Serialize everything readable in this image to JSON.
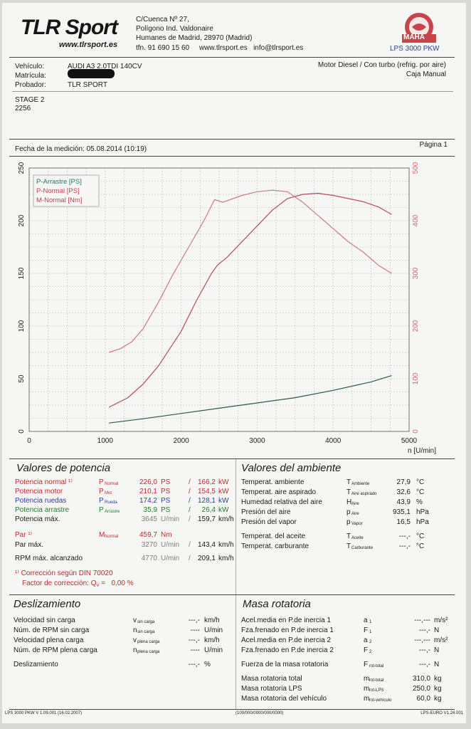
{
  "company": {
    "logo_text": "TLR Sport",
    "logo_url": "www.tlrsport.es",
    "address_line1": "C/Cuenca  Nº 27,",
    "address_line2": "Polígono Ind. Valdonaire",
    "address_line3": "Humanes de Madrid, 28970 (Madrid)",
    "contact_line": "tfn. 91 690 15 60     www.tlrsport.es   info@tlrsport.es",
    "brand_logo_text": "MAHA",
    "brand_model": "LPS 3000 PKW"
  },
  "vehicle": {
    "vehiculo_label": "Vehículo:",
    "vehiculo_value": "AUDI A3 2.0TDI 140CV",
    "matricula_label": "Matrícula:",
    "probador_label": "Probador:",
    "probador_value": "TLR SPORT",
    "engine_type": "Motor Diesel / Con turbo (refrig. por aire)",
    "gearbox": "Caja Manual",
    "stage": "STAGE 2",
    "code": "2256"
  },
  "measurement": {
    "date_label": "Fecha de la medición: 05.08.2014 (10:19)",
    "page_label": "Página 1"
  },
  "chart_data": {
    "type": "line",
    "xlabel": "n [U/min]",
    "xlim": [
      0,
      5000
    ],
    "x_ticks": [
      "0",
      "1000",
      "2000",
      "3000",
      "4000",
      "5000"
    ],
    "ylim_left": [
      0,
      250
    ],
    "y_ticks_left": [
      "0",
      "50",
      "100",
      "150",
      "200",
      "250"
    ],
    "ylim_right": [
      0,
      500
    ],
    "y_ticks_right": [
      "0",
      "100",
      "200",
      "300",
      "400",
      "500"
    ],
    "grid": true,
    "legend_position": "top-left",
    "series": [
      {
        "name": "P-Arrastre [PS]",
        "color": "#2c5a4a",
        "axis": "left",
        "x": [
          1050,
          1500,
          2000,
          2500,
          3000,
          3500,
          4000,
          4500,
          4770
        ],
        "y": [
          8,
          12,
          17,
          22,
          27,
          32,
          39,
          47,
          53
        ]
      },
      {
        "name": "P-Normal [PS]",
        "color": "#b84a57",
        "axis": "left",
        "x": [
          1050,
          1300,
          1500,
          1700,
          2000,
          2200,
          2400,
          2480,
          2600,
          3000,
          3200,
          3400,
          3600,
          3800,
          4000,
          4200,
          4400,
          4600,
          4770
        ],
        "y": [
          23,
          32,
          45,
          62,
          95,
          124,
          150,
          158,
          165,
          195,
          210,
          221,
          225,
          226,
          224,
          221,
          218,
          213,
          206
        ]
      },
      {
        "name": "M-Normal [Nm]",
        "color": "#c97a85",
        "axis": "right",
        "x": [
          1050,
          1200,
          1350,
          1500,
          1700,
          1900,
          2100,
          2300,
          2440,
          2550,
          2800,
          3000,
          3200,
          3400,
          3600,
          3800,
          4000,
          4200,
          4400,
          4600,
          4770
        ],
        "y": [
          150,
          157,
          170,
          195,
          245,
          300,
          350,
          400,
          440,
          435,
          448,
          455,
          458,
          455,
          435,
          410,
          385,
          360,
          340,
          315,
          300
        ]
      }
    ]
  },
  "potencia": {
    "title": "Valores de potencia",
    "rows": [
      {
        "label": "Potencia normal ¹⁾",
        "sym": "P",
        "sub": "Normal",
        "v1": "226,0",
        "u1": "PS",
        "sep": "/",
        "v2": "166,2",
        "u2": "kW",
        "color": "red"
      },
      {
        "label": "Potencia motor",
        "sym": "P",
        "sub": "Mot",
        "v1": "210,1",
        "u1": "PS",
        "sep": "/",
        "v2": "154,5",
        "u2": "kW",
        "color": "red"
      },
      {
        "label": "Potencia ruedas",
        "sym": "P",
        "sub": "Rueda",
        "v1": "174,2",
        "u1": "PS",
        "sep": "/",
        "v2": "128,1",
        "u2": "kW",
        "color": "blue"
      },
      {
        "label": "Potencia arrastre",
        "sym": "P",
        "sub": "Arrastre",
        "v1": "35,9",
        "u1": "PS",
        "sep": "/",
        "v2": "26,4",
        "u2": "kW",
        "color": "green"
      },
      {
        "label": "Potencia máx.",
        "sym": "",
        "sub": "",
        "v1": "3645",
        "u1": "U/min",
        "sep": "/",
        "v2": "159,7",
        "u2": "km/h",
        "color": "dark"
      }
    ],
    "par_rows": [
      {
        "label": "Par ¹⁾",
        "sym": "M",
        "sub": "Normal",
        "v1": "459,7",
        "u1": "Nm",
        "sep": "",
        "v2": "",
        "u2": "",
        "color": "red"
      },
      {
        "label": "Par máx.",
        "sym": "",
        "sub": "",
        "v1": "3270",
        "u1": "U/min",
        "sep": "/",
        "v2": "143,4",
        "u2": "km/h",
        "color": "dark"
      }
    ],
    "rpm_row": {
      "label": "RPM máx. alcanzado",
      "v1": "4770",
      "u1": "U/min",
      "sep": "/",
      "v2": "209,1",
      "u2": "km/h"
    },
    "correction_line1": "¹⁾ Corrección según DIN 70020",
    "correction_line2_label": "Factor de corrección: Q",
    "correction_line2_sub": "V",
    "correction_line2_value": " =   0,00 %"
  },
  "ambiente": {
    "title": "Valores del ambiente",
    "rows": [
      {
        "label": "Temperat. ambiente",
        "sym": "T",
        "sub": "Ambiente",
        "value": "27,9",
        "unit": "°C"
      },
      {
        "label": "Temperat. aire aspirado",
        "sym": "T",
        "sub": "Aire aspirado",
        "value": "32,6",
        "unit": "°C"
      },
      {
        "label": "Humedad relativa del aire",
        "sym": "H",
        "sub": "Aire",
        "value": "43,9",
        "unit": "%"
      },
      {
        "label": "Presión del aire",
        "sym": "p",
        "sub": "Aire",
        "value": "935,1",
        "unit": "hPa"
      },
      {
        "label": "Presión del vapor",
        "sym": "p",
        "sub": "Vapor",
        "value": "16,5",
        "unit": "hPa"
      }
    ],
    "rows2": [
      {
        "label": "Temperat. del aceite",
        "sym": "T",
        "sub": "Aceite",
        "value": "---,-",
        "unit": "°C"
      },
      {
        "label": "Temperat. carburante",
        "sym": "T",
        "sub": "Carburante",
        "value": "---,-",
        "unit": "°C"
      }
    ]
  },
  "deslizamiento": {
    "title": "Deslizamiento",
    "rows": [
      {
        "label": "Velocidad sin carga",
        "sym": "v",
        "sub": "sin carga",
        "value": "---,-",
        "unit": "km/h"
      },
      {
        "label": "Núm. de RPM sin carga",
        "sym": "n",
        "sub": "sin carga",
        "value": "----",
        "unit": "U/min"
      },
      {
        "label": "Velocidad plena carga",
        "sym": "v",
        "sub": "plena carga",
        "value": "---,-",
        "unit": "km/h"
      },
      {
        "label": "Núm. de RPM plena carga",
        "sym": "n",
        "sub": "plena carga",
        "value": "----",
        "unit": "U/min"
      }
    ],
    "slip_label": "Deslizamiento",
    "slip_value": "---,-",
    "slip_unit": "%"
  },
  "masa": {
    "title": "Masa rotatoria",
    "rows": [
      {
        "label": "Acel.media en P.de inercia 1",
        "sym": "a",
        "sub": "1",
        "value": "---,---",
        "unit": "m/s²"
      },
      {
        "label": "Fza.frenado en P.de inercia 1",
        "sym": "F",
        "sub": "1",
        "value": "---,-",
        "unit": "N"
      },
      {
        "label": "Acel.media en P.de inercia 2",
        "sym": "a",
        "sub": "2",
        "value": "---,---",
        "unit": "m/s²"
      },
      {
        "label": "Fza.frenado en P.de inercia 2",
        "sym": "F",
        "sub": "2",
        "value": "---,-",
        "unit": "N"
      }
    ],
    "fuerza_row": {
      "label": "Fuerza de la masa rotatoria",
      "sym": "F",
      "sub": "rot-total",
      "value": "---,-",
      "unit": "N"
    },
    "mass_rows": [
      {
        "label": "Masa rotatoria total",
        "sym": "m",
        "sub": "rot-total",
        "value": "310,0",
        "unit": "kg"
      },
      {
        "label": "Masa rotatoria LPS",
        "sym": "m",
        "sub": "rot-LPS",
        "value": "250,0",
        "unit": "kg"
      },
      {
        "label": "Masa rotatoria del vehículo",
        "sym": "m",
        "sub": "rot-vehículo",
        "value": "60,0",
        "unit": "kg"
      }
    ]
  },
  "footer": {
    "left": "LPS 3000 PKW V 1.09.001 (16.02.2007)",
    "center": "(100/000/0000/000/0000)",
    "right": "LPS-EURO V1.24.001"
  }
}
